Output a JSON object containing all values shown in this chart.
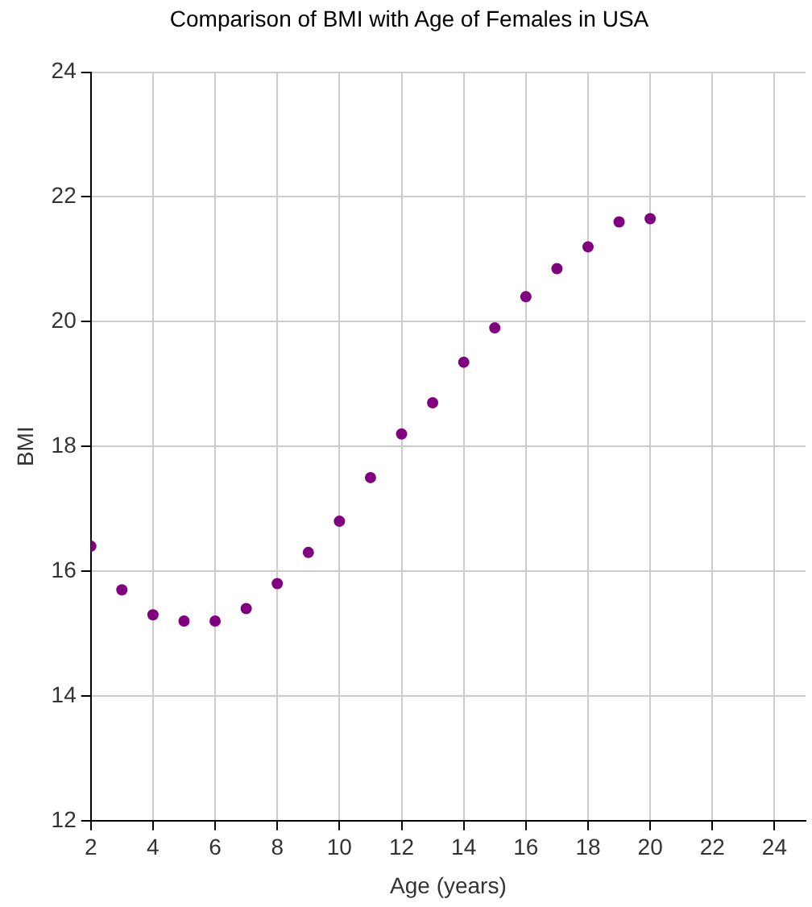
{
  "chart_data": {
    "type": "scatter",
    "title": "Comparison of BMI with Age of Females in USA",
    "xlabel": "Age (years)",
    "ylabel": "BMI",
    "x": [
      2,
      3,
      4,
      5,
      6,
      7,
      8,
      9,
      10,
      11,
      12,
      13,
      14,
      15,
      16,
      17,
      18,
      19,
      20
    ],
    "series": [
      {
        "color": "#800080",
        "values": [
          16.4,
          15.7,
          15.3,
          15.2,
          15.2,
          15.4,
          15.8,
          16.3,
          16.8,
          17.5,
          18.2,
          18.7,
          19.35,
          19.9,
          20.4,
          20.85,
          21.2,
          21.6,
          21.65
        ]
      }
    ],
    "xlim": [
      2,
      25
    ],
    "xticks": [
      2,
      4,
      6,
      8,
      10,
      12,
      14,
      16,
      18,
      20,
      22,
      24
    ],
    "ylim": [
      12,
      24
    ],
    "yticks": [
      12,
      14,
      16,
      18,
      20,
      22,
      24
    ],
    "grid": true,
    "legend": false,
    "marker": "circle"
  }
}
